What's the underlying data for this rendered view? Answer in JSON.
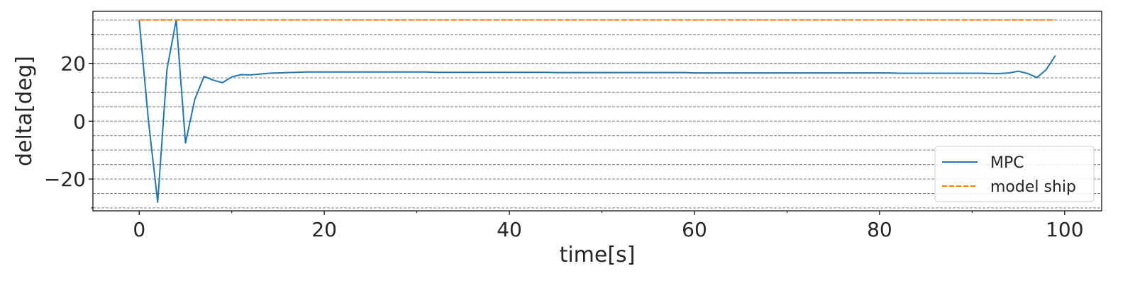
{
  "chart_data": {
    "type": "line",
    "title": "",
    "xlabel": "time[s]",
    "ylabel": "delta[deg]",
    "xlim": [
      -5,
      104
    ],
    "ylim": [
      -31,
      38
    ],
    "x_ticks": [
      0,
      20,
      40,
      60,
      80,
      100
    ],
    "x_tick_labels": [
      "0",
      "20",
      "40",
      "60",
      "80",
      "100"
    ],
    "y_ticks": [
      -20,
      0,
      20
    ],
    "y_tick_labels": [
      "−20",
      "0",
      "20"
    ],
    "grid": {
      "axis": "y",
      "style": "dashed",
      "minor_step": 5
    },
    "legend_position": "lower-right",
    "series": [
      {
        "name": "MPC",
        "color": "#1f77b4",
        "style": "solid",
        "x": [
          0,
          1,
          2,
          3,
          4,
          5,
          6,
          7,
          8,
          9,
          10,
          11,
          12,
          13,
          14,
          15,
          16,
          17,
          18,
          19,
          20,
          21,
          22,
          23,
          24,
          25,
          26,
          27,
          28,
          29,
          30,
          31,
          32,
          33,
          34,
          35,
          36,
          37,
          38,
          39,
          40,
          41,
          42,
          43,
          44,
          45,
          46,
          47,
          48,
          49,
          50,
          51,
          52,
          53,
          54,
          55,
          56,
          57,
          58,
          59,
          60,
          61,
          62,
          63,
          64,
          65,
          66,
          67,
          68,
          69,
          70,
          71,
          72,
          73,
          74,
          75,
          76,
          77,
          78,
          79,
          80,
          81,
          82,
          83,
          84,
          85,
          86,
          87,
          88,
          89,
          90,
          91,
          92,
          93,
          94,
          95,
          96,
          97,
          98,
          99
        ],
        "y": [
          35,
          0,
          -28,
          18,
          35,
          -7.5,
          7.5,
          15.5,
          14.2,
          13.3,
          15.3,
          16.1,
          16.0,
          16.3,
          16.6,
          16.7,
          16.8,
          16.9,
          17.0,
          17.0,
          17.0,
          17.0,
          17.0,
          17.0,
          17.0,
          17.0,
          17.0,
          17.0,
          17.0,
          17.0,
          17.0,
          17.0,
          16.9,
          16.9,
          16.9,
          16.9,
          16.9,
          16.9,
          16.9,
          16.9,
          16.9,
          16.9,
          16.9,
          16.9,
          16.9,
          16.8,
          16.8,
          16.8,
          16.8,
          16.8,
          16.8,
          16.8,
          16.8,
          16.8,
          16.8,
          16.8,
          16.8,
          16.8,
          16.8,
          16.8,
          16.7,
          16.7,
          16.7,
          16.7,
          16.7,
          16.7,
          16.7,
          16.7,
          16.7,
          16.7,
          16.7,
          16.7,
          16.7,
          16.7,
          16.7,
          16.7,
          16.7,
          16.7,
          16.7,
          16.7,
          16.7,
          16.7,
          16.6,
          16.6,
          16.6,
          16.6,
          16.6,
          16.6,
          16.6,
          16.6,
          16.6,
          16.6,
          16.5,
          16.5,
          16.7,
          17.3,
          16.5,
          15.1,
          17.8,
          22.7
        ]
      },
      {
        "name": "model ship",
        "color": "#ff7f0e",
        "style": "dashed",
        "x": [
          0,
          99
        ],
        "y": [
          35,
          35
        ]
      }
    ]
  }
}
